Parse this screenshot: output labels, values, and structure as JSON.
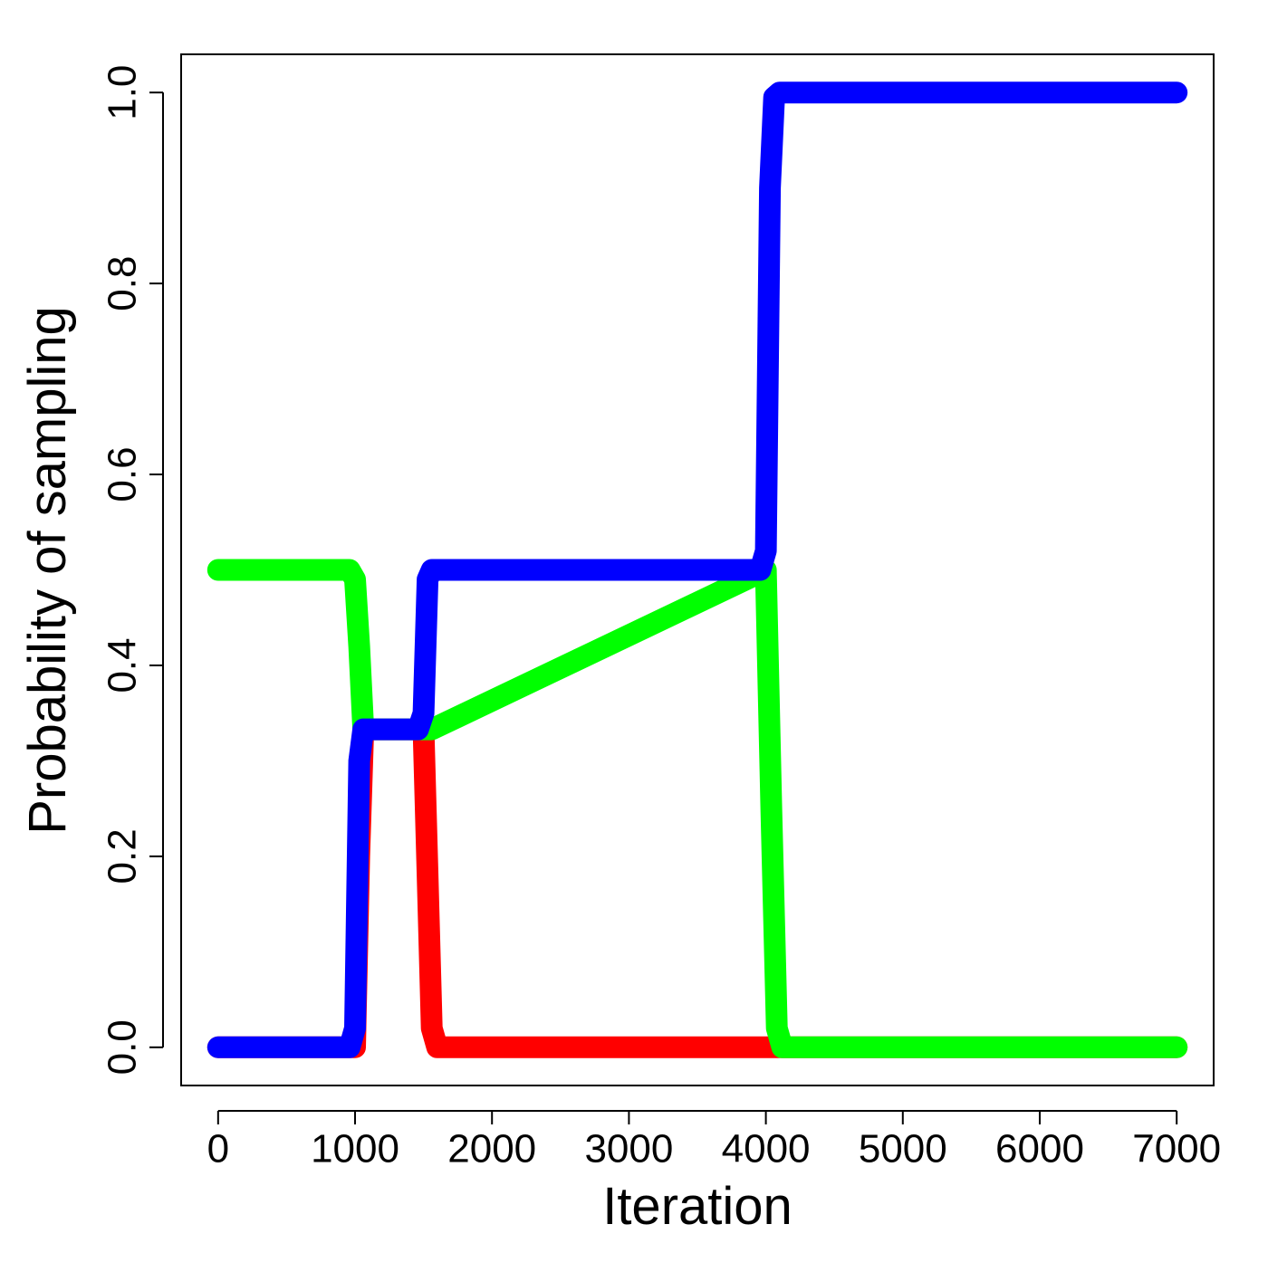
{
  "chart_data": {
    "type": "line",
    "title": "",
    "xlabel": "Iteration",
    "ylabel": "Probability of sampling",
    "xlim": [
      -270,
      7270
    ],
    "ylim": [
      -0.04,
      1.04
    ],
    "x_ticks": [
      0,
      1000,
      2000,
      3000,
      4000,
      5000,
      6000,
      7000
    ],
    "x_tick_labels": [
      "0",
      "1000",
      "2000",
      "3000",
      "4000",
      "5000",
      "6000",
      "7000"
    ],
    "y_ticks": [
      0.0,
      0.2,
      0.4,
      0.6,
      0.8,
      1.0
    ],
    "y_tick_labels": [
      "0.0",
      "0.2",
      "0.4",
      "0.6",
      "0.8",
      "1.0"
    ],
    "grid": false,
    "legend": "none",
    "series": [
      {
        "color": "#ff0000",
        "x": [
          0,
          1000,
          1030,
          1060,
          1500,
          1530,
          1560,
          1600,
          4100,
          7000
        ],
        "y": [
          0.0,
          0.0,
          0.2,
          0.333,
          0.333,
          0.18,
          0.02,
          0.0,
          0.0,
          0.0
        ]
      },
      {
        "color": "#00ff00",
        "x": [
          0,
          960,
          1000,
          1030,
          1060,
          1500,
          1560,
          4000,
          4040,
          4080,
          4120,
          7000
        ],
        "y": [
          0.5,
          0.5,
          0.49,
          0.42,
          0.333,
          0.333,
          0.333,
          0.5,
          0.25,
          0.02,
          0.0,
          0.0
        ]
      },
      {
        "color": "#0000ff",
        "x": [
          0,
          960,
          1000,
          1030,
          1060,
          1460,
          1500,
          1530,
          1560,
          3960,
          4000,
          4030,
          4060,
          4100,
          7000
        ],
        "y": [
          0.0,
          0.0,
          0.02,
          0.3,
          0.333,
          0.333,
          0.35,
          0.49,
          0.5,
          0.5,
          0.52,
          0.9,
          0.995,
          1.0,
          1.0
        ]
      }
    ]
  }
}
